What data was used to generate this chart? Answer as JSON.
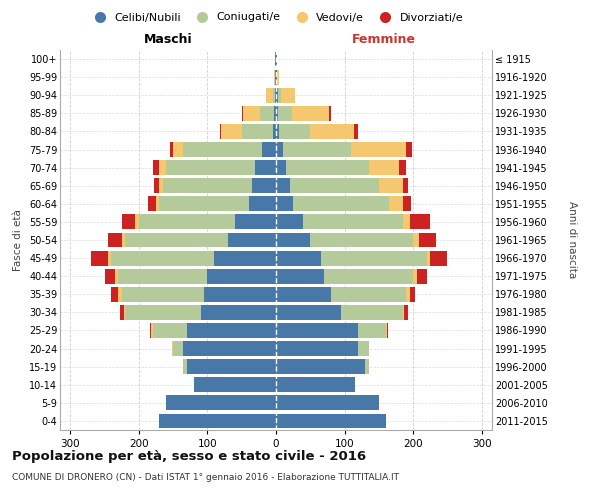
{
  "age_groups": [
    "0-4",
    "5-9",
    "10-14",
    "15-19",
    "20-24",
    "25-29",
    "30-34",
    "35-39",
    "40-44",
    "45-49",
    "50-54",
    "55-59",
    "60-64",
    "65-69",
    "70-74",
    "75-79",
    "80-84",
    "85-89",
    "90-94",
    "95-99",
    "100+"
  ],
  "birth_years": [
    "2011-2015",
    "2006-2010",
    "2001-2005",
    "1996-2000",
    "1991-1995",
    "1986-1990",
    "1981-1985",
    "1976-1980",
    "1971-1975",
    "1966-1970",
    "1961-1965",
    "1956-1960",
    "1951-1955",
    "1946-1950",
    "1941-1945",
    "1936-1940",
    "1931-1935",
    "1926-1930",
    "1921-1925",
    "1916-1920",
    "≤ 1915"
  ],
  "colors": {
    "celibe": "#4878a8",
    "coniugato": "#b5ca9a",
    "vedovo": "#f5c870",
    "divorziato": "#cc2222"
  },
  "maschi": {
    "celibe": [
      170,
      160,
      120,
      130,
      135,
      130,
      110,
      105,
      100,
      90,
      70,
      60,
      40,
      35,
      30,
      20,
      5,
      3,
      1,
      1,
      1
    ],
    "coniugato": [
      0,
      0,
      0,
      5,
      15,
      50,
      110,
      120,
      130,
      150,
      150,
      140,
      130,
      130,
      130,
      115,
      45,
      20,
      3,
      0,
      0
    ],
    "vedovo": [
      0,
      0,
      0,
      0,
      1,
      2,
      2,
      5,
      5,
      5,
      5,
      5,
      5,
      5,
      10,
      15,
      30,
      25,
      10,
      2,
      0
    ],
    "divorziato": [
      0,
      0,
      0,
      0,
      1,
      2,
      5,
      10,
      15,
      25,
      20,
      20,
      12,
      8,
      10,
      5,
      2,
      2,
      0,
      0,
      0
    ]
  },
  "femmine": {
    "celibe": [
      160,
      150,
      115,
      130,
      120,
      120,
      95,
      80,
      70,
      65,
      50,
      40,
      25,
      20,
      15,
      10,
      4,
      3,
      3,
      2,
      1
    ],
    "coniugato": [
      0,
      0,
      0,
      5,
      15,
      40,
      90,
      110,
      130,
      155,
      150,
      145,
      140,
      130,
      120,
      100,
      45,
      20,
      5,
      0,
      0
    ],
    "vedovo": [
      0,
      0,
      0,
      0,
      0,
      2,
      2,
      5,
      5,
      5,
      8,
      10,
      20,
      35,
      45,
      80,
      65,
      55,
      20,
      3,
      0
    ],
    "divorziato": [
      0,
      0,
      0,
      0,
      1,
      2,
      5,
      8,
      15,
      25,
      25,
      30,
      12,
      8,
      10,
      8,
      5,
      2,
      0,
      0,
      0
    ]
  },
  "title": "Popolazione per età, sesso e stato civile - 2016",
  "subtitle": "COMUNE DI DRONERO (CN) - Dati ISTAT 1° gennaio 2016 - Elaborazione TUTTITALIA.IT",
  "ylabel_left": "Fasce di età",
  "ylabel_right": "Anni di nascita",
  "xlabel_maschi": "Maschi",
  "xlabel_femmine": "Femmine",
  "xlim": 315,
  "background_color": "#ffffff",
  "grid_color": "#cccccc"
}
